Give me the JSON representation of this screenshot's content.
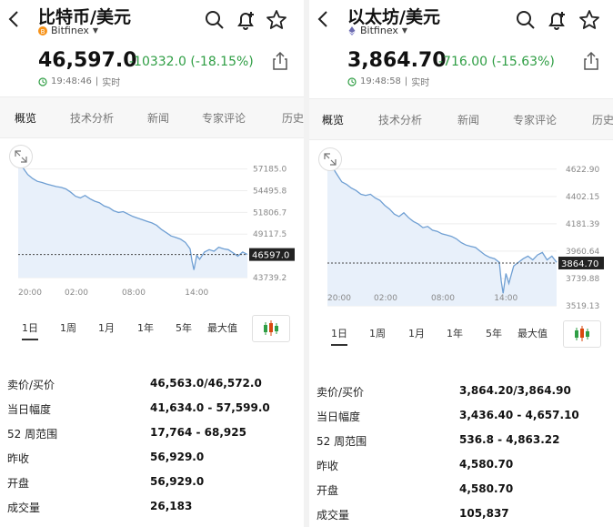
{
  "panels": [
    {
      "title": "比特币/美元",
      "exchange": "Bitfinex",
      "coin_color": "#f7931a",
      "price": "46,597.0",
      "change": "-10332.0 (-18.15%)",
      "time": "19:48:46",
      "realtime": "实时",
      "tabs": [
        "概览",
        "技术分析",
        "新闻",
        "专家评论",
        "历史"
      ],
      "ranges": [
        "1日",
        "1周",
        "1月",
        "1年",
        "5年",
        "最大值"
      ],
      "stats": [
        {
          "label": "卖价/买价",
          "value": "46,563.0/46,572.0"
        },
        {
          "label": "当日幅度",
          "value": "41,634.0 - 57,599.0"
        },
        {
          "label": "52 周范围",
          "value": "17,764 - 68,925"
        },
        {
          "label": "昨收",
          "value": "56,929.0"
        },
        {
          "label": "开盘",
          "value": "56,929.0"
        },
        {
          "label": "成交量",
          "value": "26,183"
        }
      ]
    },
    {
      "title": "以太坊/美元",
      "exchange": "Bitfinex",
      "coin_color": "#6b6bb0",
      "price": "3,864.70",
      "change": "-716.00 (-15.63%)",
      "time": "19:48:58",
      "realtime": "实时",
      "tabs": [
        "概览",
        "技术分析",
        "新闻",
        "专家评论",
        "历史"
      ],
      "ranges": [
        "1日",
        "1周",
        "1月",
        "1年",
        "5年",
        "最大值"
      ],
      "stats": [
        {
          "label": "卖价/买价",
          "value": "3,864.20/3,864.90"
        },
        {
          "label": "当日幅度",
          "value": "3,436.40 - 4,657.10"
        },
        {
          "label": "52 周范围",
          "value": "536.8 - 4,863.22"
        },
        {
          "label": "昨收",
          "value": "4,580.70"
        },
        {
          "label": "开盘",
          "value": "4,580.70"
        },
        {
          "label": "成交量",
          "value": "105,837"
        }
      ]
    }
  ],
  "chart_data": [
    {
      "type": "line",
      "title": "",
      "x_ticks": [
        "20:00",
        "02:00",
        "08:00",
        "14:00"
      ],
      "y_ticks": [
        57185.0,
        54495.8,
        51806.7,
        49117.5,
        43739.2
      ],
      "y_tick_labels": [
        "57185.0",
        "54495.8",
        "51806.7",
        "49117.5",
        "43739.2"
      ],
      "ylim": [
        43739.2,
        58600
      ],
      "current_label": "46597.0",
      "current_value": 46597.0,
      "line_color": "#6f9fd3",
      "fill_color": "#e8f0fa",
      "x": [
        0,
        0.5,
        1,
        1.5,
        2,
        2.5,
        3,
        3.5,
        4,
        4.5,
        5,
        5.5,
        6,
        6.5,
        7,
        7.5,
        8,
        8.5,
        9,
        9.5,
        10,
        10.5,
        11,
        11.5,
        12,
        12.5,
        13,
        13.5,
        14,
        14.5,
        15,
        15.5,
        16,
        16.5,
        17,
        17.5,
        18,
        18.2,
        18.4,
        18.7,
        19,
        19.5,
        20,
        20.5,
        21,
        21.5,
        22,
        22.5,
        23,
        23.5,
        24
      ],
      "values": [
        58000,
        57300,
        56500,
        56000,
        55650,
        55500,
        55300,
        55150,
        55000,
        54900,
        54700,
        54300,
        53800,
        53600,
        53900,
        53500,
        53200,
        53000,
        52600,
        52400,
        52000,
        51800,
        51900,
        51600,
        51300,
        51100,
        50900,
        50700,
        50500,
        50200,
        49700,
        49300,
        48900,
        48700,
        48500,
        48100,
        47300,
        45800,
        44700,
        46500,
        46000,
        46900,
        47200,
        47000,
        47500,
        47300,
        47200,
        46800,
        46400,
        46900,
        46600
      ]
    },
    {
      "type": "line",
      "title": "",
      "x_ticks": [
        "20:00",
        "02:00",
        "08:00",
        "14:00"
      ],
      "y_ticks": [
        4622.9,
        4402.15,
        4181.39,
        3960.64,
        3739.88,
        3519.13
      ],
      "y_tick_labels": [
        "4622.90",
        "4402.15",
        "4181.39",
        "3960.64",
        "3739.88",
        "3519.13"
      ],
      "ylim": [
        3519.13,
        4680
      ],
      "current_label": "3864.70",
      "current_value": 3864.7,
      "line_color": "#6f9fd3",
      "fill_color": "#e8f0fa",
      "x": [
        0,
        0.5,
        1,
        1.5,
        2,
        2.5,
        3,
        3.5,
        4,
        4.5,
        5,
        5.5,
        6,
        6.5,
        7,
        7.5,
        8,
        8.5,
        9,
        9.5,
        10,
        10.5,
        11,
        11.5,
        12,
        12.5,
        13,
        13.5,
        14,
        14.5,
        15,
        15.5,
        16,
        16.5,
        17,
        17.5,
        18,
        18.2,
        18.4,
        18.7,
        19,
        19.5,
        20,
        20.5,
        21,
        21.5,
        22,
        22.5,
        23,
        23.5,
        24
      ],
      "values": [
        4620,
        4640,
        4580,
        4520,
        4500,
        4470,
        4450,
        4420,
        4410,
        4420,
        4390,
        4370,
        4330,
        4300,
        4260,
        4240,
        4270,
        4230,
        4200,
        4180,
        4150,
        4160,
        4130,
        4120,
        4100,
        4090,
        4080,
        4060,
        4030,
        4010,
        4000,
        3990,
        3960,
        3930,
        3910,
        3900,
        3870,
        3720,
        3620,
        3780,
        3700,
        3840,
        3870,
        3900,
        3920,
        3890,
        3930,
        3950,
        3890,
        3920,
        3870
      ]
    }
  ]
}
